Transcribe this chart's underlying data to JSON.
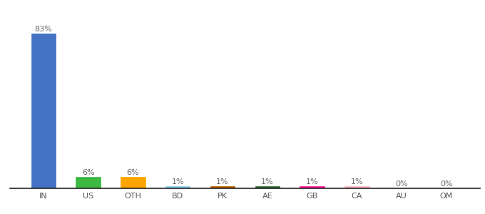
{
  "categories": [
    "IN",
    "US",
    "OTH",
    "BD",
    "PK",
    "AE",
    "GB",
    "CA",
    "AU",
    "OM"
  ],
  "values": [
    83,
    6,
    6,
    1,
    1,
    1,
    1,
    1,
    0,
    0
  ],
  "labels": [
    "83%",
    "6%",
    "6%",
    "1%",
    "1%",
    "1%",
    "1%",
    "1%",
    "0%",
    "0%"
  ],
  "colors": [
    "#4472C4",
    "#3CB843",
    "#FFA500",
    "#87CEEB",
    "#B85C00",
    "#2D6A2D",
    "#FF1493",
    "#FFB6C1",
    "#FFFFFF",
    "#FFFFFF"
  ],
  "bar_edge_colors": [
    "#4472C4",
    "#3CB843",
    "#FFA500",
    "#87CEEB",
    "#B85C00",
    "#2D6A2D",
    "#FF1493",
    "#FFB6C1",
    "#AAAAAA",
    "#AAAAAA"
  ],
  "label_fontsize": 8,
  "tick_fontsize": 8,
  "ylim": [
    0,
    92
  ],
  "background_color": "#ffffff",
  "bar_width": 0.55
}
